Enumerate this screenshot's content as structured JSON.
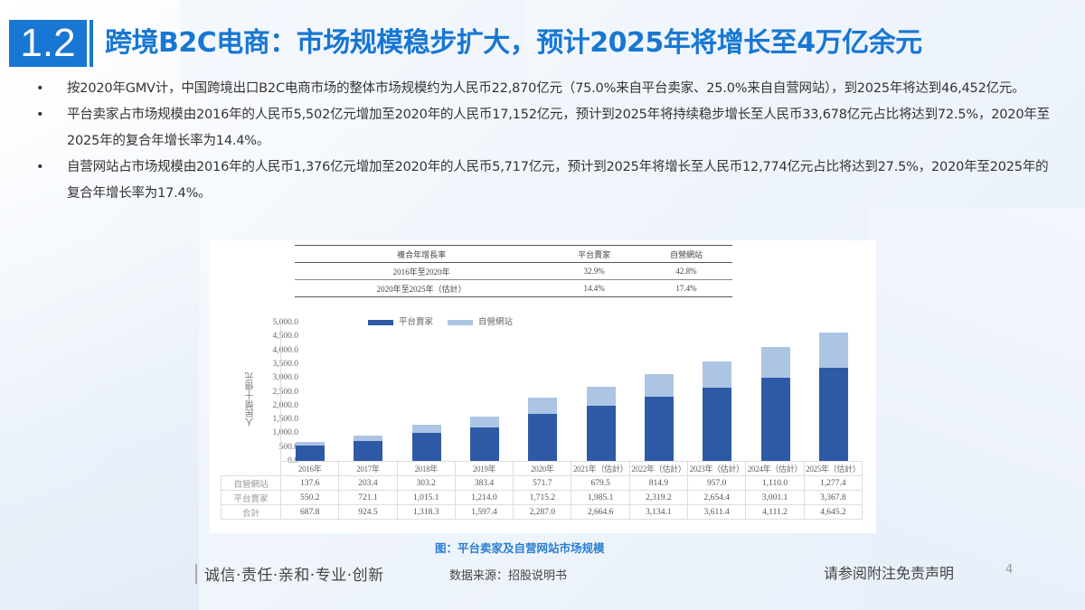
{
  "header": {
    "section_number": "1.2",
    "title": "跨境B2C电商：市场规模稳步扩大，预计2025年将增长至4万亿余元"
  },
  "bullets": [
    "按2020年GMV计，中国跨境出口B2C电商市场的整体市场规模约为人民币22,870亿元（75.0%来自平台卖家、25.0%来自自营网站），到2025年将达到46,452亿元。",
    "平台卖家占市场规模由2016年的人民币5,502亿元增加至2020年的人民币17,152亿元，预计到2025年将持续稳步增长至人民币33,678亿元占比将达到72.5%，2020年至2025年的复合年增长率为14.4%。",
    "自营网站占市场规模由2016年的人民币1,376亿元增加至2020年的人民币5,717亿元，预计到2025年将增长至人民币12,774亿元占比将达到27.5%，2020年至2025年的复合年增长率为17.4%。"
  ],
  "bullet_marker": "•",
  "cagr_table": {
    "headers": [
      "複合年增長率",
      "平台賣家",
      "自營網站"
    ],
    "rows": [
      [
        "2016年至2020年",
        "32.9%",
        "42.8%"
      ],
      [
        "2020年至2025年（估計）",
        "14.4%",
        "17.4%"
      ]
    ]
  },
  "chart_data": {
    "type": "bar",
    "stacked": true,
    "title": "图：平台卖家及自营网站市场规模",
    "xlabel": "",
    "ylabel": "人民幣十億元",
    "ylim": [
      0,
      5000
    ],
    "yticks": [
      "5,000.0",
      "4,500.0",
      "4,000.0",
      "3,500.0",
      "3,000.0",
      "2,500.0",
      "2,000.0",
      "1,500.0",
      "1,000.0",
      "500.0",
      "0.0"
    ],
    "categories": [
      "2016年",
      "2017年",
      "2018年",
      "2019年",
      "2020年",
      "2021年（估計）",
      "2022年（估計）",
      "2023年（估計）",
      "2024年（估計）",
      "2025年（估計）"
    ],
    "series": [
      {
        "name": "平台賣家",
        "color": "#2e5aa5",
        "values": [
          550.2,
          721.1,
          1015.1,
          1214.0,
          1715.2,
          1985.1,
          2319.2,
          2654.4,
          3001.1,
          3367.8
        ]
      },
      {
        "name": "自營網站",
        "color": "#adc5e4",
        "values": [
          137.6,
          203.4,
          303.2,
          383.4,
          571.7,
          679.5,
          814.9,
          957.0,
          1110.0,
          1277.4
        ]
      }
    ],
    "totals": [
      687.8,
      924.5,
      1318.3,
      1597.4,
      2287.0,
      2664.6,
      3134.1,
      3611.4,
      4111.2,
      4645.2
    ],
    "legend_position": "top",
    "grid": false
  },
  "data_table": {
    "row_labels": [
      "自營網站",
      "平台賣家",
      "合計"
    ],
    "rows": [
      [
        "137.6",
        "203.4",
        "303.2",
        "383.4",
        "571.7",
        "679.5",
        "814.9",
        "957.0",
        "1,110.0",
        "1,277.4"
      ],
      [
        "550.2",
        "721.1",
        "1,015.1",
        "1,214.0",
        "1,715.2",
        "1,985.1",
        "2,319.2",
        "2,654.4",
        "3,001.1",
        "3,367.8"
      ],
      [
        "687.8",
        "924.5",
        "1,318.3",
        "1,597.4",
        "2,287.0",
        "2,664.6",
        "3,134.1",
        "3,611.4",
        "4,111.2",
        "4,645.2"
      ]
    ]
  },
  "footer": {
    "caption": "图：平台卖家及自营网站市场规模",
    "motto": "诚信·责任·亲和·专业·创新",
    "source": "数据来源：招股说明书",
    "disclaimer": "请参阅附注免责声明",
    "page_number": "4"
  },
  "colors": {
    "brand_blue": "#1877d2",
    "series_dark": "#2e5aa5",
    "series_light": "#adc5e4"
  }
}
